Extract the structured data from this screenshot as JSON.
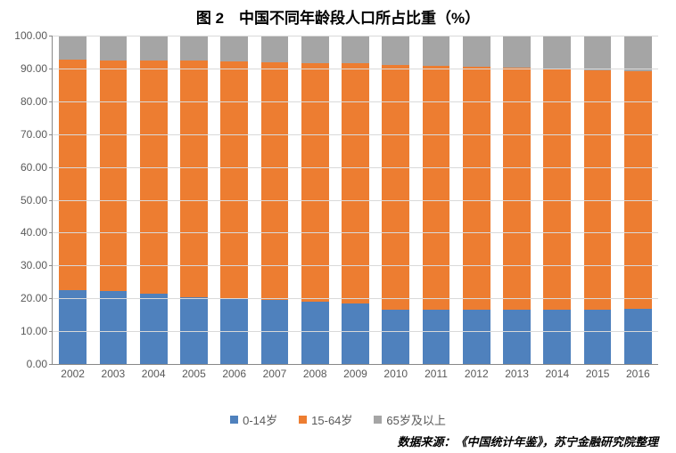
{
  "title": "图 2　中国不同年龄段人口所占比重（%）",
  "title_fontsize": 17,
  "source": "数据来源：《中国统计年鉴》，苏宁金融研究院整理",
  "chart": {
    "type": "stacked-bar",
    "background_color": "#ffffff",
    "grid_color": "#d9d9d9",
    "axis_color": "#888888",
    "label_color": "#595959",
    "label_fontsize": 12,
    "ylim": [
      0,
      100
    ],
    "ytick_step": 10,
    "yticks": [
      "0.00",
      "10.00",
      "20.00",
      "30.00",
      "40.00",
      "50.00",
      "60.00",
      "70.00",
      "80.00",
      "90.00",
      "100.00"
    ],
    "categories": [
      "2002",
      "2003",
      "2004",
      "2005",
      "2006",
      "2007",
      "2008",
      "2009",
      "2010",
      "2011",
      "2012",
      "2013",
      "2014",
      "2015",
      "2016"
    ],
    "series": [
      {
        "key": "age0_14",
        "label": "0-14岁",
        "color": "#4f81bd"
      },
      {
        "key": "age15_64",
        "label": "15-64岁",
        "color": "#ed7d31"
      },
      {
        "key": "age65p",
        "label": "65岁及以上",
        "color": "#a5a5a5"
      }
    ],
    "data": {
      "age0_14": [
        22.4,
        22.1,
        21.5,
        20.3,
        19.8,
        19.4,
        19.0,
        18.5,
        16.6,
        16.5,
        16.5,
        16.4,
        16.5,
        16.5,
        16.7
      ],
      "age15_64": [
        70.3,
        70.4,
        70.9,
        72.0,
        72.3,
        72.5,
        72.7,
        73.0,
        74.5,
        74.4,
        74.1,
        73.9,
        73.4,
        73.0,
        72.5
      ],
      "age65p": [
        7.3,
        7.5,
        7.6,
        7.7,
        7.9,
        8.1,
        8.3,
        8.5,
        8.9,
        9.1,
        9.4,
        9.7,
        10.1,
        10.5,
        10.8
      ]
    },
    "bar_width": 0.68
  },
  "legend_fontsize": 13
}
